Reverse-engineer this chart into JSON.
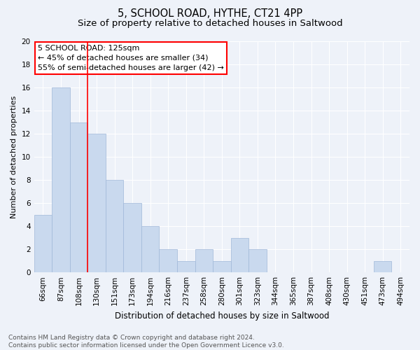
{
  "title": "5, SCHOOL ROAD, HYTHE, CT21 4PP",
  "subtitle": "Size of property relative to detached houses in Saltwood",
  "xlabel": "Distribution of detached houses by size in Saltwood",
  "ylabel": "Number of detached properties",
  "bar_labels": [
    "66sqm",
    "87sqm",
    "108sqm",
    "130sqm",
    "151sqm",
    "173sqm",
    "194sqm",
    "216sqm",
    "237sqm",
    "258sqm",
    "280sqm",
    "301sqm",
    "323sqm",
    "344sqm",
    "365sqm",
    "387sqm",
    "408sqm",
    "430sqm",
    "451sqm",
    "473sqm",
    "494sqm"
  ],
  "bar_values": [
    5,
    16,
    13,
    12,
    8,
    6,
    4,
    2,
    1,
    2,
    1,
    3,
    2,
    0,
    0,
    0,
    0,
    0,
    0,
    1,
    0
  ],
  "bar_color": "#c9d9ee",
  "bar_edgecolor": "#a0b8d8",
  "vline_x": 2.5,
  "vline_color": "red",
  "ylim": [
    0,
    20
  ],
  "yticks": [
    0,
    2,
    4,
    6,
    8,
    10,
    12,
    14,
    16,
    18,
    20
  ],
  "annotation_box_text": "5 SCHOOL ROAD: 125sqm\n← 45% of detached houses are smaller (34)\n55% of semi-detached houses are larger (42) →",
  "annotation_box_color": "red",
  "footnote": "Contains HM Land Registry data © Crown copyright and database right 2024.\nContains public sector information licensed under the Open Government Licence v3.0.",
  "background_color": "#eef2f9",
  "grid_color": "white",
  "title_fontsize": 10.5,
  "subtitle_fontsize": 9.5,
  "xlabel_fontsize": 8.5,
  "ylabel_fontsize": 8,
  "tick_fontsize": 7.5,
  "annotation_fontsize": 8,
  "footnote_fontsize": 6.5
}
